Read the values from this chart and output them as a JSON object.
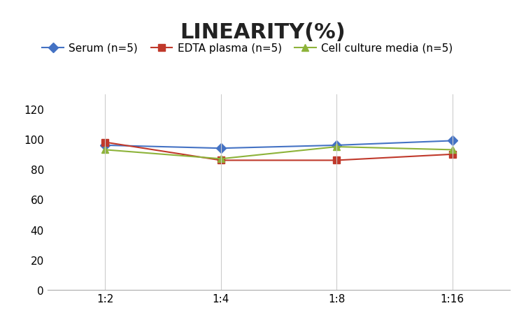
{
  "title": "LINEARITY(%)",
  "x_labels": [
    "1:2",
    "1:4",
    "1:8",
    "1:16"
  ],
  "x_positions": [
    0,
    1,
    2,
    3
  ],
  "series": [
    {
      "label": "Serum (n=5)",
      "color": "#4472C4",
      "marker": "D",
      "markersize": 7,
      "values": [
        96,
        94,
        96,
        99
      ]
    },
    {
      "label": "EDTA plasma (n=5)",
      "color": "#C0392B",
      "marker": "s",
      "markersize": 7,
      "values": [
        98,
        86,
        86,
        90
      ]
    },
    {
      "label": "Cell culture media (n=5)",
      "color": "#8DB33A",
      "marker": "^",
      "markersize": 7,
      "values": [
        93,
        87,
        95,
        93
      ]
    }
  ],
  "ylim": [
    0,
    130
  ],
  "yticks": [
    0,
    20,
    40,
    60,
    80,
    100,
    120
  ],
  "grid_color": "#CCCCCC",
  "background_color": "#FFFFFF",
  "title_fontsize": 22,
  "title_fontweight": "bold",
  "legend_fontsize": 11,
  "tick_fontsize": 11
}
